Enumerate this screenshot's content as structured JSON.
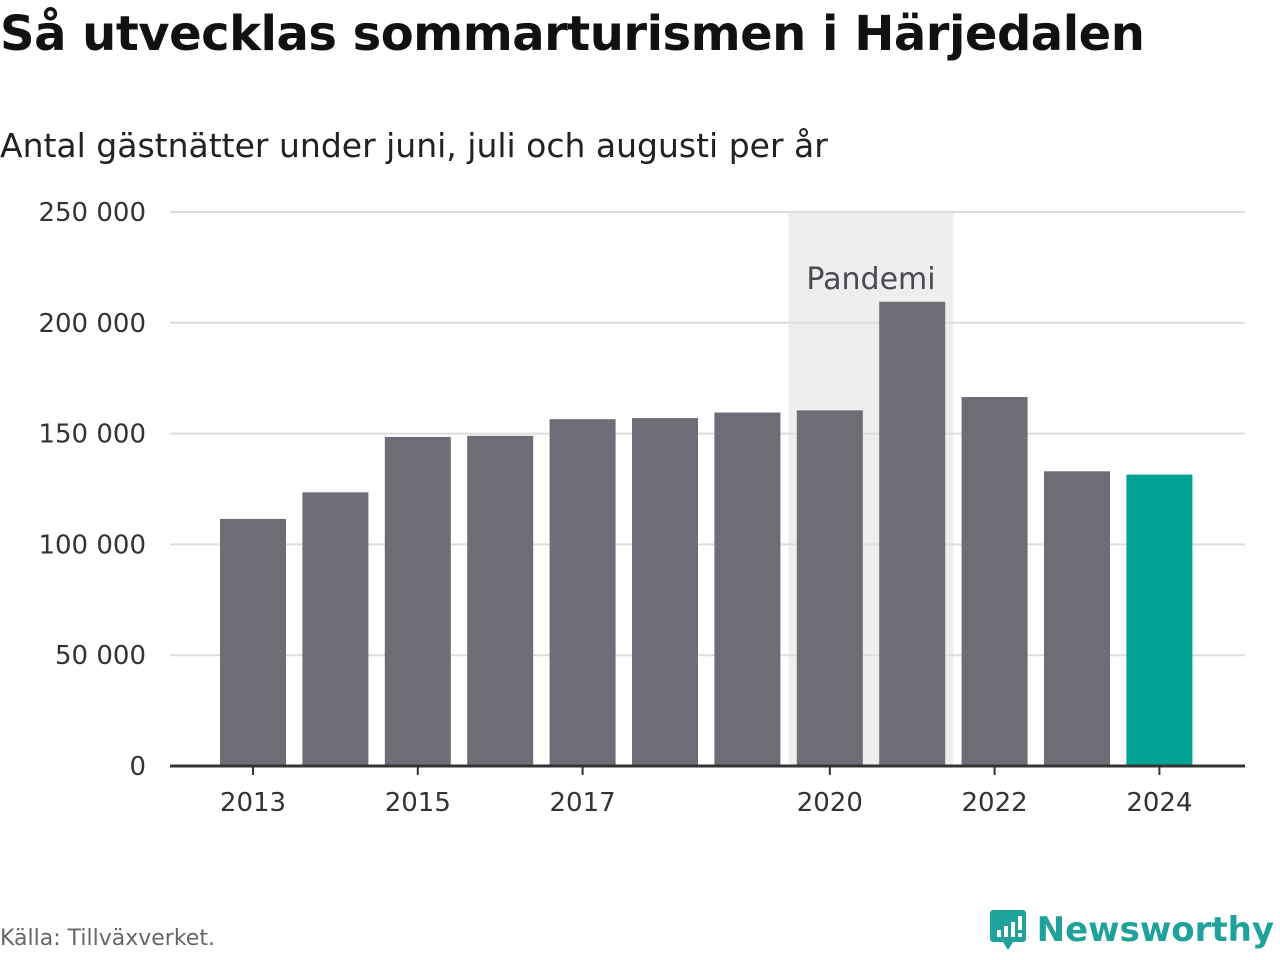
{
  "title": "Så utvecklas sommarturismen i Härjedalen",
  "subtitle": "Antal gästnätter under juni, juli och augusti per år",
  "source": "Källa: Tillväxverket.",
  "brand": {
    "name": "Newsworthy",
    "icon": "newsworthy-logo-icon",
    "color": "#1fa19c"
  },
  "chart_data": {
    "type": "bar",
    "categories": [
      "2013",
      "2014",
      "2015",
      "2016",
      "2017",
      "2018",
      "2019",
      "2020",
      "2021",
      "2022",
      "2023",
      "2024"
    ],
    "values": [
      111500,
      123500,
      148500,
      149000,
      156500,
      157000,
      159500,
      160500,
      209500,
      166500,
      133000,
      131500
    ],
    "x_tick_labels": [
      "2013",
      "2015",
      "2017",
      "2020",
      "2022",
      "2024"
    ],
    "y_tick_values": [
      0,
      50000,
      100000,
      150000,
      200000,
      250000
    ],
    "y_tick_labels": [
      "0",
      "50 000",
      "100 000",
      "150 000",
      "200 000",
      "250 000"
    ],
    "ylim": [
      0,
      250000
    ],
    "grid": true,
    "highlight": {
      "category": "2024",
      "color": "#00a396"
    },
    "bar_color": "#6e6d76",
    "annotation": {
      "label": "Pandemi",
      "from": "2020",
      "to": "2021",
      "shade_color": "#eeeeee"
    }
  }
}
